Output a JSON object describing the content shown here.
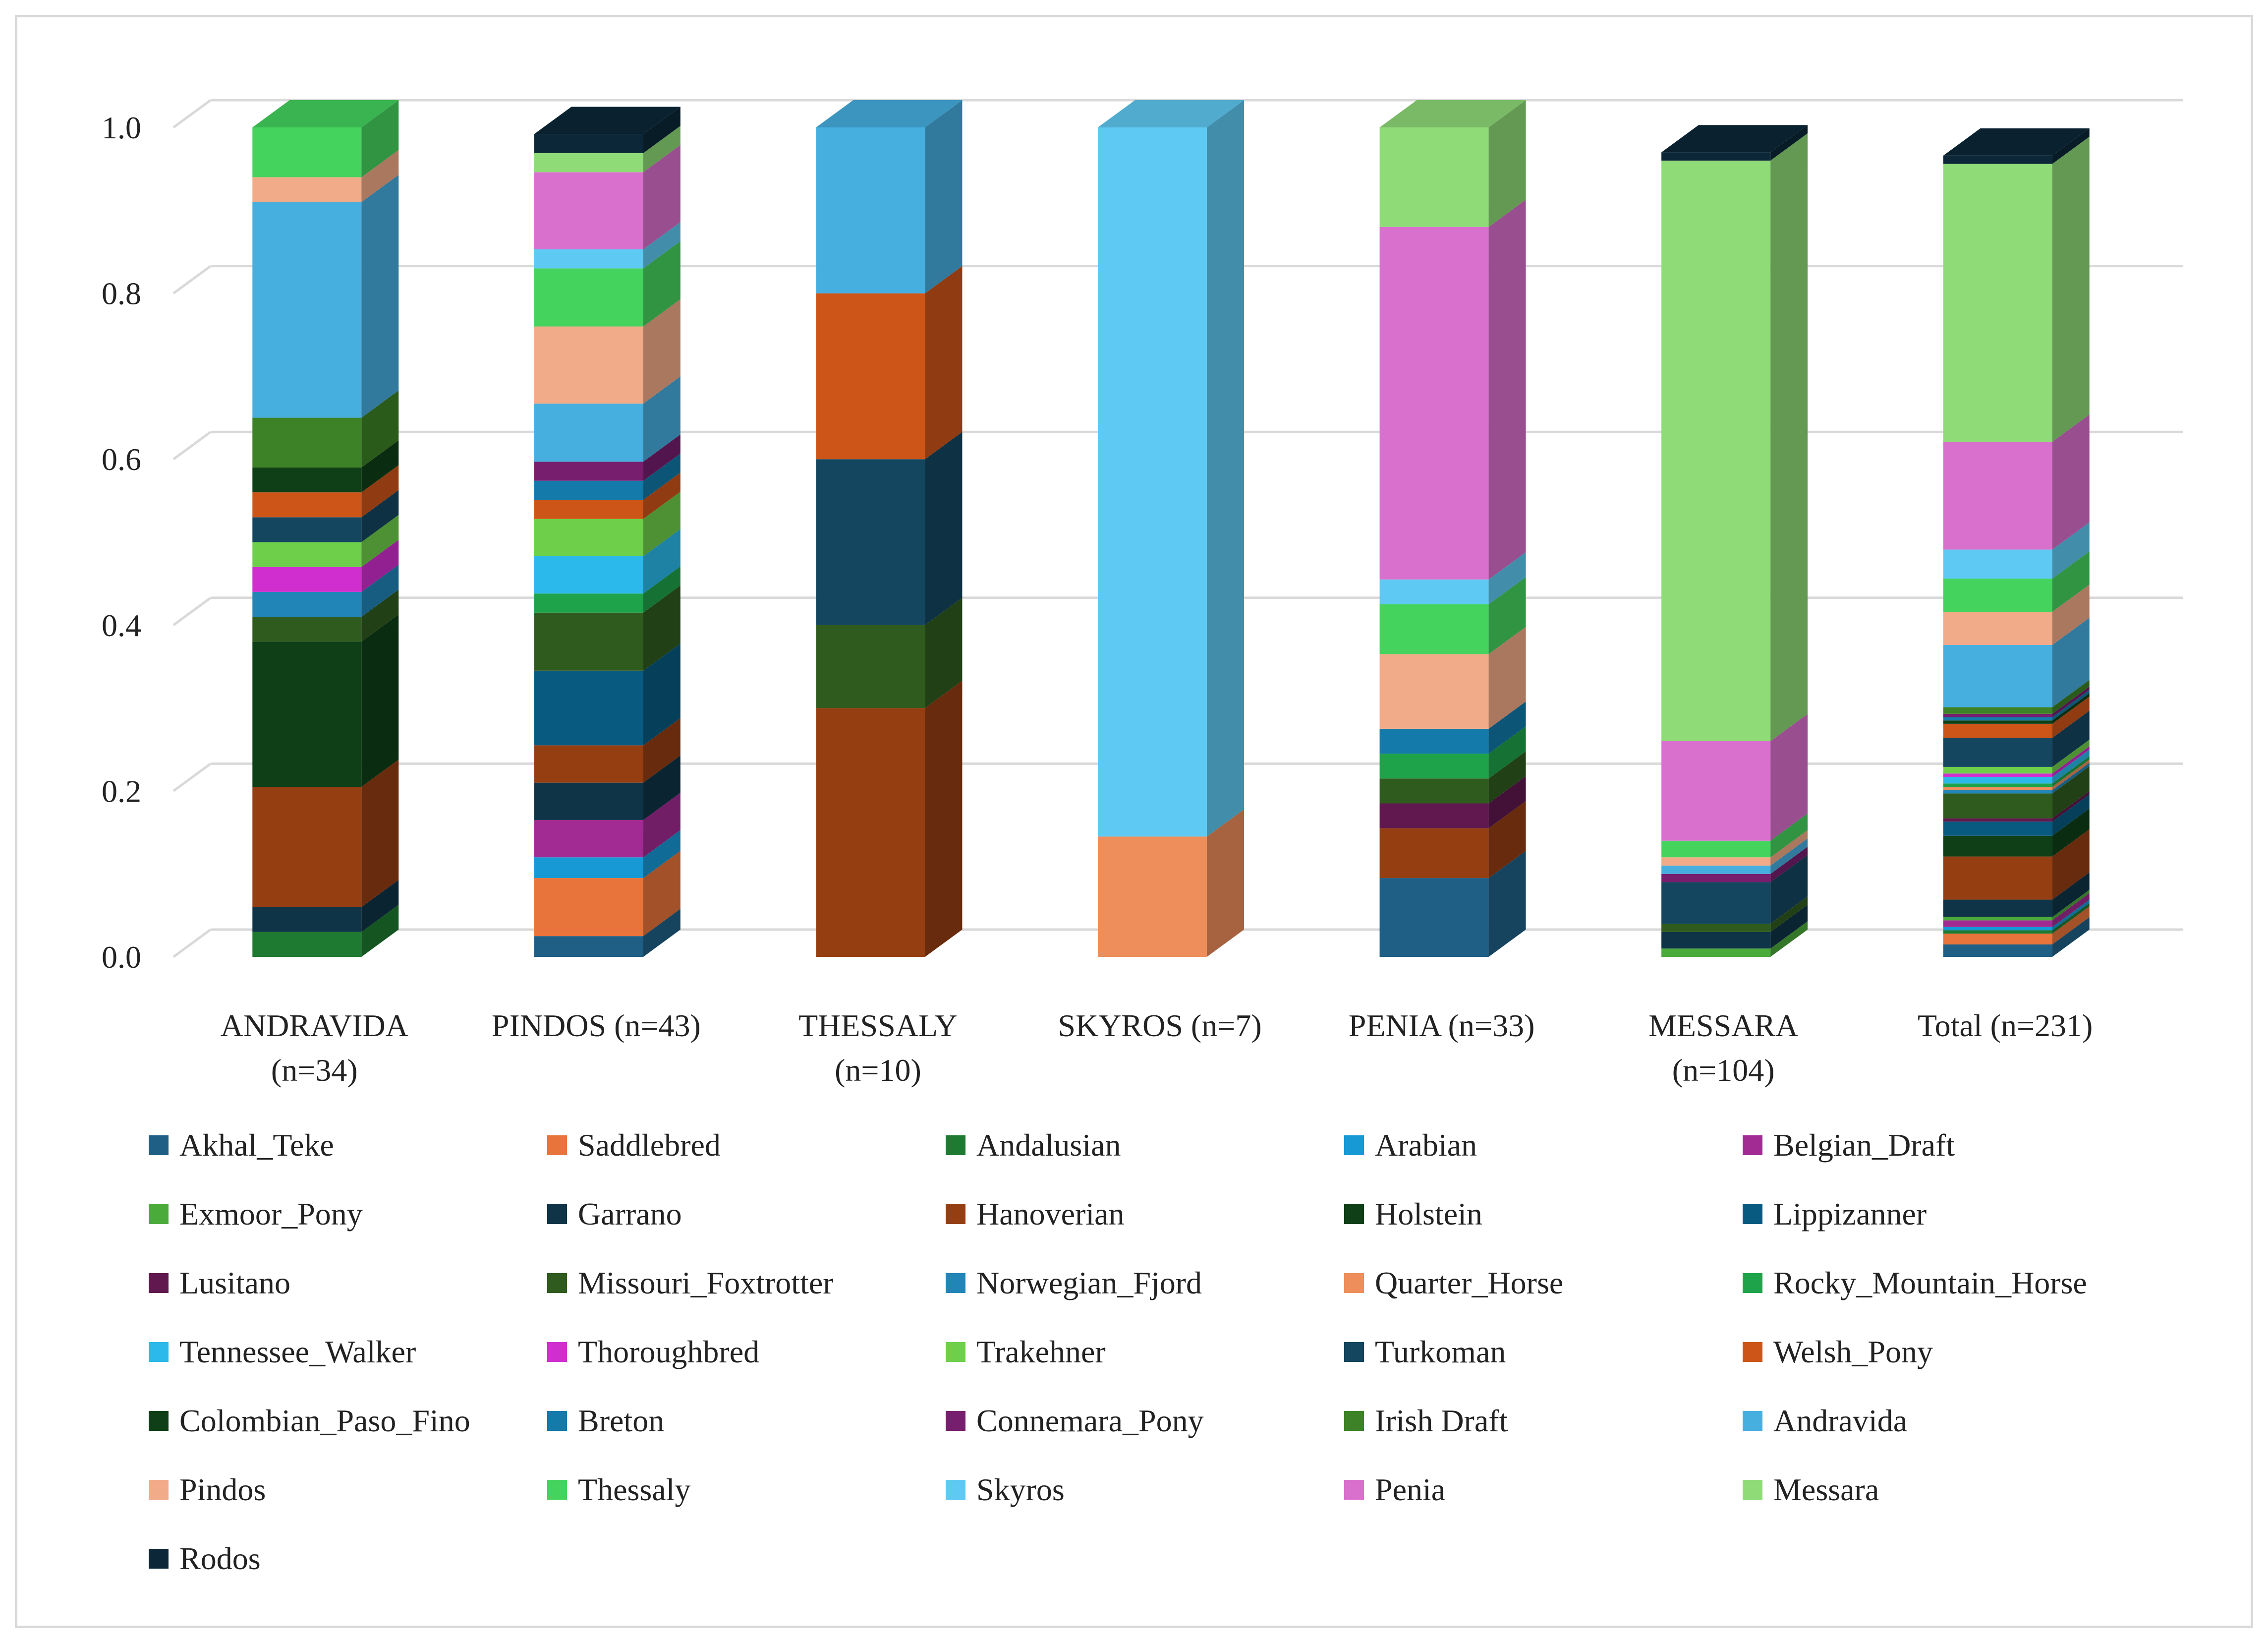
{
  "chart_data": {
    "type": "bar",
    "stacked": true,
    "style": "3d-column",
    "ylim": [
      0,
      1.0
    ],
    "yticks": [
      "0.0",
      "0.2",
      "0.4",
      "0.6",
      "0.8",
      "1.0"
    ],
    "grid": true,
    "categories": [
      [
        "ANDRAVIDA",
        "(n=34)"
      ],
      [
        "PINDOS (n=43)"
      ],
      [
        "THESSALY",
        "(n=10)"
      ],
      [
        "SKYROS (n=7)"
      ],
      [
        "PENIA (n=33)"
      ],
      [
        "MESSARA",
        "(n=104)"
      ],
      [
        "Total (n=231)"
      ]
    ],
    "series": [
      {
        "name": "Akhal_Teke",
        "color": "#1f5f85",
        "values": [
          0.0,
          0.025,
          0.0,
          0.0,
          0.095,
          0.0,
          0.015
        ]
      },
      {
        "name": "Saddlebred",
        "color": "#e8743b",
        "values": [
          0.0,
          0.07,
          0.0,
          0.0,
          0.0,
          0.0,
          0.013
        ]
      },
      {
        "name": "Andalusian",
        "color": "#1e7a30",
        "values": [
          0.03,
          0.0,
          0.0,
          0.0,
          0.0,
          0.0,
          0.004
        ]
      },
      {
        "name": "Arabian",
        "color": "#1799d6",
        "values": [
          0.0,
          0.025,
          0.0,
          0.0,
          0.0,
          0.0,
          0.004
        ]
      },
      {
        "name": "Belgian_Draft",
        "color": "#a22b93",
        "values": [
          0.0,
          0.045,
          0.0,
          0.0,
          0.0,
          0.0,
          0.008
        ]
      },
      {
        "name": "Exmoor_Pony",
        "color": "#4aaa3a",
        "values": [
          0.0,
          0.0,
          0.0,
          0.0,
          0.0,
          0.01,
          0.004
        ]
      },
      {
        "name": "Garrano",
        "color": "#0f3447",
        "values": [
          0.03,
          0.045,
          0.0,
          0.0,
          0.0,
          0.02,
          0.021
        ]
      },
      {
        "name": "Hanoverian",
        "color": "#953e12",
        "values": [
          0.145,
          0.045,
          0.3,
          0.0,
          0.06,
          0.0,
          0.052
        ]
      },
      {
        "name": "Holstein",
        "color": "#0e3f17",
        "values": [
          0.175,
          0.0,
          0.0,
          0.0,
          0.0,
          0.0,
          0.025
        ]
      },
      {
        "name": "Lippizanner",
        "color": "#085a80",
        "values": [
          0.0,
          0.09,
          0.0,
          0.0,
          0.0,
          0.0,
          0.017
        ]
      },
      {
        "name": "Lusitano",
        "color": "#60184f",
        "values": [
          0.0,
          0.0,
          0.0,
          0.0,
          0.03,
          0.0,
          0.004
        ]
      },
      {
        "name": "Missouri_Foxtrotter",
        "color": "#2f5c1e",
        "values": [
          0.03,
          0.07,
          0.1,
          0.0,
          0.03,
          0.01,
          0.03
        ]
      },
      {
        "name": "Norwegian_Fjord",
        "color": "#2185b8",
        "values": [
          0.03,
          0.0,
          0.0,
          0.0,
          0.0,
          0.0,
          0.004
        ]
      },
      {
        "name": "Quarter_Horse",
        "color": "#ee8e5a",
        "values": [
          0.0,
          0.0,
          0.0,
          0.145,
          0.0,
          0.0,
          0.004
        ]
      },
      {
        "name": "Rocky_Mountain_Horse",
        "color": "#1ea34a",
        "values": [
          0.0,
          0.023,
          0.0,
          0.0,
          0.03,
          0.0,
          0.004
        ]
      },
      {
        "name": "Tennessee_Walker",
        "color": "#2ab9ea",
        "values": [
          0.0,
          0.045,
          0.0,
          0.0,
          0.0,
          0.0,
          0.008
        ]
      },
      {
        "name": "Thoroughbred",
        "color": "#d02ecf",
        "values": [
          0.03,
          0.0,
          0.0,
          0.0,
          0.0,
          0.0,
          0.004
        ]
      },
      {
        "name": "Trakehner",
        "color": "#6ecf4a",
        "values": [
          0.03,
          0.045,
          0.0,
          0.0,
          0.0,
          0.0,
          0.008
        ]
      },
      {
        "name": "Turkoman",
        "color": "#14465f",
        "values": [
          0.03,
          0.0,
          0.2,
          0.0,
          0.0,
          0.05,
          0.035
        ]
      },
      {
        "name": "Welsh_Pony",
        "color": "#cd5518",
        "values": [
          0.03,
          0.023,
          0.2,
          0.0,
          0.0,
          0.0,
          0.017
        ]
      },
      {
        "name": "Colombian_Paso_Fino",
        "color": "#0e3f17",
        "values": [
          0.03,
          0.0,
          0.0,
          0.0,
          0.0,
          0.0,
          0.004
        ]
      },
      {
        "name": "Breton",
        "color": "#137aaa",
        "values": [
          0.0,
          0.023,
          0.0,
          0.0,
          0.03,
          0.0,
          0.004
        ]
      },
      {
        "name": "Connemara_Pony",
        "color": "#771e6e",
        "values": [
          0.0,
          0.023,
          0.0,
          0.0,
          0.0,
          0.01,
          0.004
        ]
      },
      {
        "name": "Irish Draft",
        "color": "#3d8226",
        "values": [
          0.06,
          0.0,
          0.0,
          0.0,
          0.0,
          0.0,
          0.008
        ]
      },
      {
        "name": "Andravida",
        "color": "#46afe0",
        "values": [
          0.26,
          0.07,
          0.2,
          0.0,
          0.0,
          0.01,
          0.075
        ]
      },
      {
        "name": "Pindos",
        "color": "#f1ab88",
        "values": [
          0.03,
          0.093,
          0.0,
          0.0,
          0.09,
          0.01,
          0.04
        ]
      },
      {
        "name": "Thessaly",
        "color": "#44d45e",
        "values": [
          0.06,
          0.07,
          0.0,
          0.0,
          0.06,
          0.02,
          0.04
        ]
      },
      {
        "name": "Skyros",
        "color": "#5ec9f3",
        "values": [
          0.0,
          0.023,
          0.0,
          0.855,
          0.03,
          0.0,
          0.035
        ]
      },
      {
        "name": "Penia",
        "color": "#da70cd",
        "values": [
          0.0,
          0.093,
          0.0,
          0.0,
          0.425,
          0.12,
          0.13
        ]
      },
      {
        "name": "Messara",
        "color": "#8fdb78",
        "values": [
          0.0,
          0.023,
          0.0,
          0.0,
          0.12,
          0.7,
          0.335
        ]
      },
      {
        "name": "Rodos",
        "color": "#0c2838",
        "values": [
          0.0,
          0.023,
          0.0,
          0.0,
          0.0,
          0.01,
          0.01
        ]
      }
    ]
  }
}
